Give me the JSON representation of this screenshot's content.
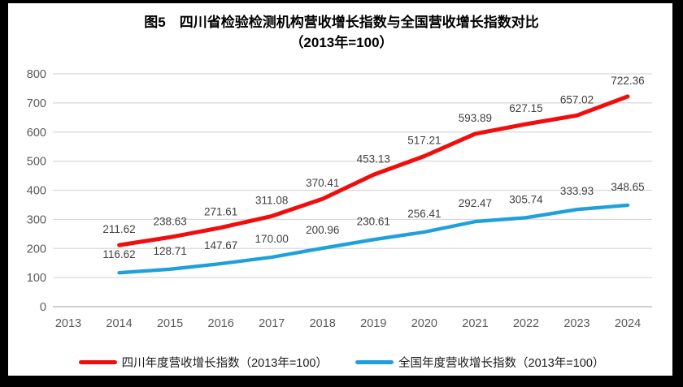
{
  "title": {
    "line1": "图5　四川省检验检测机构营收增长指数与全国营收增长指数对比",
    "line2": "（2013年=100）"
  },
  "chart_data": {
    "type": "line",
    "title": "图5　四川省检验检测机构营收增长指数与全国营收增长指数对比",
    "subtitle": "（2013年=100）",
    "x": [
      2014,
      2015,
      2016,
      2017,
      2018,
      2019,
      2020,
      2021,
      2022,
      2023,
      2024
    ],
    "xticks": [
      2013,
      2014,
      2015,
      2016,
      2017,
      2018,
      2019,
      2020,
      2021,
      2022,
      2023,
      2024
    ],
    "yticks": [
      0,
      100,
      200,
      300,
      400,
      500,
      600,
      700,
      800
    ],
    "ylim": [
      0,
      800
    ],
    "xlim": [
      2013,
      2024
    ],
    "grid": true,
    "data_labels": true,
    "legend_position": "bottom",
    "series": [
      {
        "name": "四川年度营收增长指数（2013年=100）",
        "color": "#f20d0d",
        "values": [
          211.62,
          238.63,
          271.61,
          311.08,
          370.41,
          453.13,
          517.21,
          593.89,
          627.15,
          657.02,
          722.36
        ]
      },
      {
        "name": "全国年度营收增长指数（2013年=100）",
        "color": "#1fa0dc",
        "values": [
          116.62,
          128.71,
          147.67,
          170.0,
          200.96,
          230.61,
          256.41,
          292.47,
          305.74,
          333.93,
          348.65
        ]
      }
    ]
  },
  "colors": {
    "frame_border": "#000000",
    "gridline": "#d9d9d9",
    "zero_line": "#bfbfbf",
    "tick_label": "#595959",
    "data_label": "#3f3f3f"
  }
}
